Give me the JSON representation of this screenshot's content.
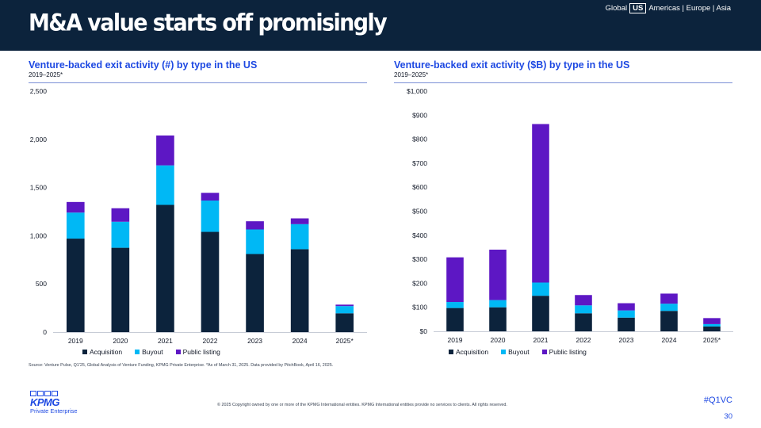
{
  "header": {
    "title": "M&A value starts off promisingly",
    "regions": {
      "global": "Global",
      "us": "US",
      "rest": "Americas | Europe | Asia"
    }
  },
  "colors": {
    "acquisition": "#0c233c",
    "buyout": "#00b8f5",
    "public_listing": "#5d17c4"
  },
  "chart_data": [
    {
      "type": "bar",
      "stacked": true,
      "title": "Venture-backed exit activity (#) by type in the US",
      "subtitle": "2019–2025*",
      "xlabel": "",
      "ylabel": "",
      "categories": [
        "2019",
        "2020",
        "2021",
        "2022",
        "2023",
        "2024",
        "2025*"
      ],
      "ylim": [
        0,
        2500
      ],
      "yticks": [
        "0",
        "500",
        "1,000",
        "1,500",
        "2,000",
        "2,500"
      ],
      "series": [
        {
          "name": "Acquisition",
          "values": [
            970,
            875,
            1320,
            1040,
            810,
            860,
            195
          ]
        },
        {
          "name": "Buyout",
          "values": [
            270,
            270,
            410,
            325,
            255,
            260,
            75
          ]
        },
        {
          "name": "Public listing",
          "values": [
            110,
            140,
            310,
            80,
            85,
            60,
            15
          ]
        }
      ],
      "legend_position": "bottom",
      "grid": false
    },
    {
      "type": "bar",
      "stacked": true,
      "title": "Venture-backed exit activity ($B) by type in the US",
      "subtitle": "2019–2025*",
      "xlabel": "",
      "ylabel": "",
      "categories": [
        "2019",
        "2020",
        "2021",
        "2022",
        "2023",
        "2024",
        "2025*"
      ],
      "ylim": [
        0,
        1000
      ],
      "yticks": [
        "$0",
        "$100",
        "$200",
        "$300",
        "$400",
        "$500",
        "$600",
        "$700",
        "$800",
        "$900",
        "$1,000"
      ],
      "series": [
        {
          "name": "Acquisition",
          "values": [
            97,
            100,
            148,
            75,
            57,
            85,
            20
          ]
        },
        {
          "name": "Buyout",
          "values": [
            25,
            30,
            55,
            33,
            30,
            30,
            10
          ]
        },
        {
          "name": "Public listing",
          "values": [
            186,
            210,
            660,
            43,
            30,
            42,
            25
          ]
        }
      ],
      "legend_position": "bottom",
      "grid": false
    }
  ],
  "footer": {
    "source": "Source: Venture Pulse, Q1'25, Global Analysis of Venture Funding, KPMG Private Enterprise. *As of March 31, 2025. Data provided by PitchBook, April 16, 2025.",
    "copyright": "© 2025 Copyright owned by one or more of the KPMG International entities. KPMG International entities provide no services to clients. All rights reserved.",
    "hashtag": "#Q1VC",
    "page_number": "30",
    "logo_word": "KPMG",
    "logo_sub": "Private Enterprise"
  }
}
